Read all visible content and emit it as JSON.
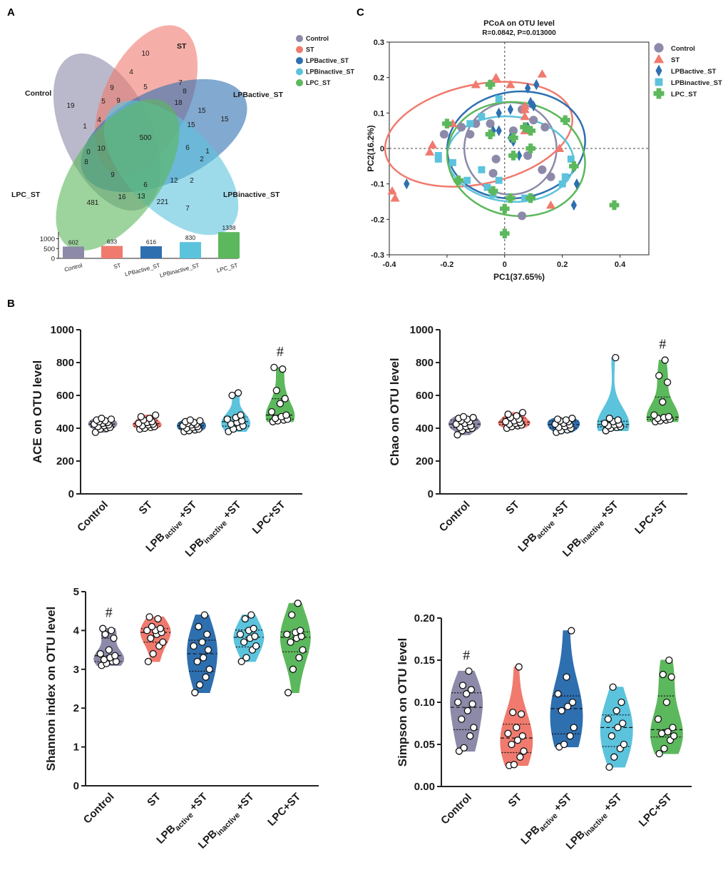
{
  "colors": {
    "Control": "#8c8aa8",
    "ST": "#f07a6e",
    "LPBactive": "#2e6fb0",
    "LPBinactive": "#5cc3dd",
    "LPC": "#5cb85c"
  },
  "panels": {
    "A": "A",
    "B": "B",
    "C": "C"
  },
  "venn": {
    "sets": [
      "Control",
      "ST",
      "LPBactive_ST",
      "LPBinactive_ST",
      "LPC_ST"
    ],
    "outer_labels": [
      "Control",
      "ST",
      "LPBactive_ST",
      "LPBinactive_ST",
      "LPC_ST"
    ],
    "region_counts": [
      "10",
      "4",
      "5",
      "7",
      "9",
      "5",
      "8",
      "18",
      "15",
      "15",
      "19",
      "1",
      "4",
      "9",
      "500",
      "6",
      "1",
      "2",
      "0",
      "10",
      "8",
      "9",
      "6",
      "12",
      "2",
      "481",
      "16",
      "13",
      "221",
      "7",
      "15"
    ],
    "bar_values": [
      602,
      633,
      616,
      830,
      1338
    ],
    "bar_labels": [
      "602",
      "633",
      "616",
      "830",
      "1338"
    ],
    "bar_categories": [
      "Control",
      "ST",
      "LPBactive_ST",
      "LPBinactive_ST",
      "LPC_ST"
    ],
    "bar_ticks": [
      "1000",
      "500",
      "0"
    ]
  },
  "chart_data": [
    {
      "type": "scatter",
      "title": "PCoA on OTU level",
      "subtitle": "R=0.0842, P=0.013000",
      "xlabel": "PC1(37.65%)",
      "ylabel": "PC2(16.2%)",
      "xlim": [
        -0.4,
        0.5
      ],
      "ylim": [
        -0.3,
        0.3
      ],
      "xticks": [
        "-0.4",
        "-0.2",
        "0",
        "0.2",
        "0.4"
      ],
      "yticks": [
        "0.3",
        "0.2",
        "0.1",
        "0",
        "-0.1",
        "-0.2",
        "-0.3"
      ],
      "legend": [
        "Control",
        "ST",
        "LPBactive_ST",
        "LPBinactive_ST",
        "LPC_ST"
      ],
      "series": [
        {
          "name": "Control",
          "points": [
            [
              -0.21,
              0.04
            ],
            [
              -0.15,
              0.06
            ],
            [
              -0.12,
              0.04
            ],
            [
              -0.1,
              0.07
            ],
            [
              -0.05,
              0.07
            ],
            [
              -0.03,
              -0.03
            ],
            [
              0.03,
              0.05
            ],
            [
              0.06,
              0.11
            ],
            [
              0.08,
              -0.02
            ],
            [
              0.1,
              0.08
            ],
            [
              0.14,
              0.06
            ],
            [
              0.13,
              -0.06
            ],
            [
              0.06,
              -0.19
            ],
            [
              0.16,
              -0.08
            ],
            [
              -0.04,
              -0.07
            ]
          ]
        },
        {
          "name": "ST",
          "points": [
            [
              -0.39,
              -0.12
            ],
            [
              -0.38,
              -0.14
            ],
            [
              -0.26,
              -0.01
            ],
            [
              -0.25,
              0.01
            ],
            [
              -0.18,
              0.07
            ],
            [
              -0.1,
              0.18
            ],
            [
              -0.03,
              0.2
            ],
            [
              0.02,
              0.18
            ],
            [
              0.07,
              0.12
            ],
            [
              0.07,
              0.11
            ],
            [
              0.07,
              0.05
            ],
            [
              0.13,
              0.21
            ],
            [
              0.07,
              0.09
            ],
            [
              0.16,
              -0.16
            ],
            [
              0.19,
              0.0
            ]
          ]
        },
        {
          "name": "LPBactive_ST",
          "points": [
            [
              -0.34,
              -0.1
            ],
            [
              -0.02,
              0.1
            ],
            [
              -0.04,
              0.05
            ],
            [
              0.02,
              0.11
            ],
            [
              0.05,
              -0.02
            ],
            [
              0.08,
              0.17
            ],
            [
              0.09,
              0.13
            ],
            [
              0.08,
              0.06
            ],
            [
              0.1,
              0.12
            ],
            [
              0.25,
              -0.1
            ],
            [
              0.24,
              -0.16
            ],
            [
              -0.02,
              0.05
            ],
            [
              0.03,
              0.02
            ],
            [
              0.11,
              0.18
            ],
            [
              0.02,
              0.03
            ]
          ]
        },
        {
          "name": "LPBinactive_ST",
          "points": [
            [
              -0.23,
              -0.02
            ],
            [
              -0.23,
              -0.03
            ],
            [
              -0.18,
              -0.04
            ],
            [
              -0.13,
              -0.09
            ],
            [
              -0.08,
              -0.06
            ],
            [
              -0.08,
              0.09
            ],
            [
              -0.04,
              -0.13
            ],
            [
              -0.06,
              -0.11
            ],
            [
              -0.02,
              -0.09
            ],
            [
              -0.02,
              0.14
            ],
            [
              0.2,
              -0.1
            ],
            [
              0.21,
              -0.08
            ],
            [
              0.23,
              -0.03
            ],
            [
              0.07,
              -0.14
            ],
            [
              -0.12,
              0.07
            ]
          ]
        },
        {
          "name": "LPC_ST",
          "points": [
            [
              -0.2,
              0.07
            ],
            [
              -0.16,
              -0.09
            ],
            [
              -0.05,
              0.18
            ],
            [
              -0.04,
              -0.12
            ],
            [
              0.0,
              -0.24
            ],
            [
              0.0,
              -0.17
            ],
            [
              0.02,
              -0.14
            ],
            [
              0.03,
              -0.02
            ],
            [
              0.07,
              0.06
            ],
            [
              0.09,
              0.05
            ],
            [
              0.09,
              0.0
            ],
            [
              0.09,
              -0.14
            ],
            [
              0.21,
              0.08
            ],
            [
              0.24,
              -0.05
            ],
            [
              0.38,
              -0.16
            ],
            [
              -0.05,
              0.04
            ],
            [
              0.03,
              0.03
            ]
          ]
        }
      ]
    },
    {
      "type": "violin",
      "ylabel": "ACE on OTU level",
      "ylim": [
        0,
        1000
      ],
      "yticks": [
        "1000",
        "800",
        "600",
        "400",
        "200",
        "0"
      ],
      "categories": [
        "Control",
        "ST",
        "LPB active +ST",
        "LPB inactive +ST",
        "LPC+ST"
      ],
      "annotation": {
        "group": "LPC+ST",
        "text": "#"
      },
      "groups": [
        {
          "name": "Control",
          "values": [
            375,
            395,
            400,
            405,
            410,
            415,
            420,
            425,
            430,
            435,
            440,
            445,
            450,
            455,
            460
          ]
        },
        {
          "name": "ST",
          "values": [
            395,
            400,
            405,
            410,
            415,
            420,
            425,
            430,
            435,
            440,
            450,
            460,
            470,
            480
          ]
        },
        {
          "name": "LPB active +ST",
          "values": [
            380,
            385,
            390,
            395,
            400,
            405,
            410,
            415,
            420,
            425,
            430,
            435,
            440,
            445,
            450
          ]
        },
        {
          "name": "LPB inactive +ST",
          "values": [
            380,
            395,
            405,
            415,
            425,
            435,
            445,
            455,
            465,
            480,
            600,
            615
          ]
        },
        {
          "name": "LPC+ST",
          "values": [
            440,
            445,
            450,
            455,
            460,
            470,
            480,
            500,
            550,
            580,
            630,
            760,
            770
          ]
        }
      ]
    },
    {
      "type": "violin",
      "ylabel": "Chao on OTU level",
      "ylim": [
        0,
        1000
      ],
      "yticks": [
        "1000",
        "800",
        "600",
        "400",
        "200",
        "0"
      ],
      "categories": [
        "Control",
        "ST",
        "LPB active +ST",
        "LPB inactive +ST",
        "LPC+ST"
      ],
      "annotation": {
        "group": "LPC+ST",
        "text": "#"
      },
      "groups": [
        {
          "name": "Control",
          "values": [
            360,
            385,
            395,
            400,
            405,
            410,
            415,
            425,
            430,
            440,
            445,
            455,
            460,
            465,
            470
          ]
        },
        {
          "name": "ST",
          "values": [
            400,
            410,
            415,
            420,
            425,
            430,
            435,
            440,
            445,
            455,
            465,
            475,
            485,
            495
          ]
        },
        {
          "name": "LPB active +ST",
          "values": [
            375,
            385,
            390,
            400,
            405,
            410,
            420,
            425,
            430,
            440,
            445,
            450,
            455,
            460
          ]
        },
        {
          "name": "LPB inactive +ST",
          "values": [
            385,
            400,
            405,
            410,
            415,
            420,
            425,
            430,
            440,
            450,
            460,
            830
          ]
        },
        {
          "name": "LPC+ST",
          "values": [
            440,
            445,
            450,
            455,
            460,
            465,
            470,
            480,
            560,
            680,
            720,
            815
          ]
        }
      ]
    },
    {
      "type": "violin",
      "ylabel": "Shannon index on OTU level",
      "ylim": [
        0,
        5
      ],
      "yticks": [
        "5",
        "4",
        "3",
        "2",
        "1",
        "0"
      ],
      "categories": [
        "Control",
        "ST",
        "LPB active +ST",
        "LPB inactive +ST",
        "LPC+ST"
      ],
      "annotation": {
        "group": "Control",
        "text": "#"
      },
      "groups": [
        {
          "name": "Control",
          "values": [
            3.1,
            3.15,
            3.2,
            3.2,
            3.25,
            3.3,
            3.35,
            3.4,
            3.5,
            3.8,
            3.9,
            4.0,
            4.05
          ]
        },
        {
          "name": "ST",
          "values": [
            3.2,
            3.4,
            3.6,
            3.7,
            3.8,
            3.9,
            3.95,
            4.0,
            4.0,
            4.05,
            4.1,
            4.3,
            4.35
          ]
        },
        {
          "name": "LPB active +ST",
          "values": [
            2.4,
            2.6,
            2.8,
            3.0,
            3.2,
            3.3,
            3.5,
            3.6,
            3.7,
            3.9,
            4.1,
            4.4
          ]
        },
        {
          "name": "LPB inactive +ST",
          "values": [
            3.2,
            3.3,
            3.5,
            3.6,
            3.7,
            3.8,
            3.85,
            3.9,
            4.0,
            4.05,
            4.3,
            4.4
          ]
        },
        {
          "name": "LPC+ST",
          "values": [
            2.4,
            3.0,
            3.3,
            3.5,
            3.7,
            3.8,
            3.85,
            3.9,
            3.95,
            4.0,
            4.4,
            4.7
          ]
        }
      ]
    },
    {
      "type": "violin",
      "ylabel": "Simpson on OTU level",
      "ylim": [
        0,
        0.2
      ],
      "yticks": [
        "0.20",
        "0.15",
        "0.10",
        "0.05",
        "0.00"
      ],
      "categories": [
        "Control",
        "ST",
        "LPB active +ST",
        "LPB inactive +ST",
        "LPC+ST"
      ],
      "annotation": {
        "group": "Control",
        "text": "#"
      },
      "groups": [
        {
          "name": "Control",
          "values": [
            0.042,
            0.046,
            0.06,
            0.07,
            0.08,
            0.09,
            0.098,
            0.1,
            0.11,
            0.115,
            0.12,
            0.137
          ]
        },
        {
          "name": "ST",
          "values": [
            0.025,
            0.026,
            0.035,
            0.042,
            0.05,
            0.055,
            0.06,
            0.063,
            0.07,
            0.086,
            0.088,
            0.142
          ]
        },
        {
          "name": "LPB active +ST",
          "values": [
            0.047,
            0.05,
            0.06,
            0.07,
            0.09,
            0.095,
            0.1,
            0.11,
            0.13,
            0.185
          ]
        },
        {
          "name": "LPB inactive +ST",
          "values": [
            0.023,
            0.035,
            0.045,
            0.05,
            0.06,
            0.07,
            0.075,
            0.08,
            0.09,
            0.1,
            0.118
          ]
        },
        {
          "name": "LPC+ST",
          "values": [
            0.039,
            0.045,
            0.055,
            0.06,
            0.063,
            0.065,
            0.07,
            0.08,
            0.1,
            0.13,
            0.133,
            0.15
          ]
        }
      ]
    }
  ]
}
